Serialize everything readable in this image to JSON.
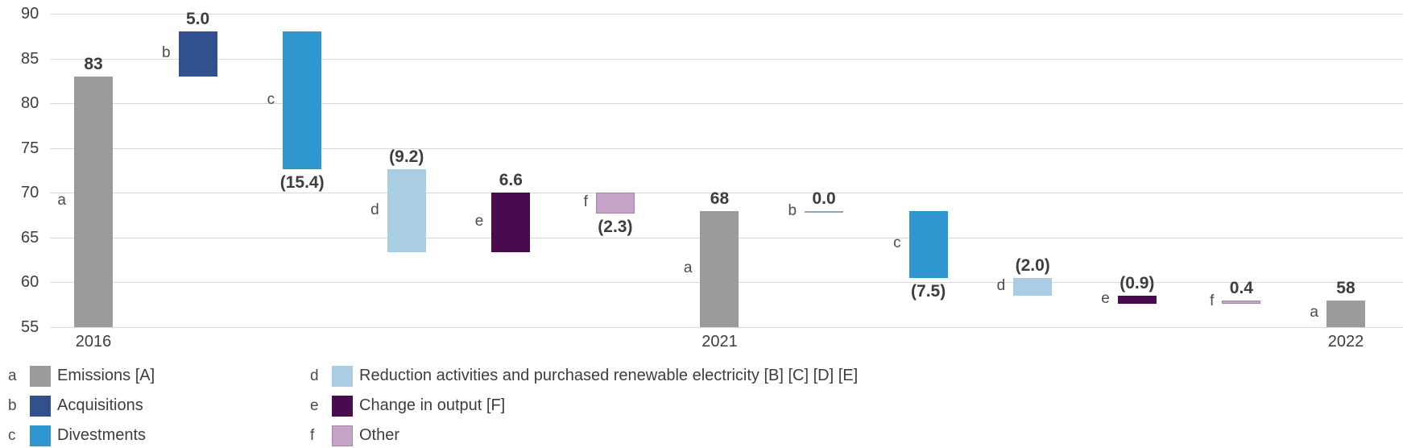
{
  "chart_data": {
    "type": "waterfall",
    "title": "",
    "xlabel": "",
    "ylabel": "",
    "ylim": [
      55,
      90
    ],
    "yticks": [
      90,
      85,
      80,
      75,
      70,
      65,
      60,
      55
    ],
    "grid": "horizontal",
    "legend_position": "bottom",
    "colors": {
      "a": "#9b9b9b",
      "b": "#31508e",
      "c": "#2f96cf",
      "d": "#a9cee4",
      "e": "#4a0a4e",
      "f": "#c6a4ca",
      "f_border": "#a283a8",
      "zero_line": "#8fa6c3",
      "text": "#3d3d3d",
      "gridline": "#d9d9d9"
    },
    "bars": [
      {
        "key": "a",
        "series": "a",
        "value_label": "83",
        "start": 55,
        "end": 83,
        "label_side": "above",
        "axis_label": "2016"
      },
      {
        "key": "b",
        "series": "b",
        "value_label": "5.0",
        "start": 83,
        "end": 88,
        "label_side": "above"
      },
      {
        "key": "c",
        "series": "c",
        "value_label": "(15.4)",
        "start": 88,
        "end": 72.6,
        "label_side": "below"
      },
      {
        "key": "d",
        "series": "d",
        "value_label": "(9.2)",
        "start": 72.6,
        "end": 63.4,
        "label_side": "above"
      },
      {
        "key": "e",
        "series": "e",
        "value_label": "6.6",
        "start": 63.4,
        "end": 70,
        "label_side": "above"
      },
      {
        "key": "f",
        "series": "f",
        "value_label": "(2.3)",
        "start": 70,
        "end": 67.7,
        "label_side": "below"
      },
      {
        "key": "a",
        "series": "a",
        "value_label": "68",
        "start": 55,
        "end": 68,
        "label_side": "above",
        "axis_label": "2021"
      },
      {
        "key": "b",
        "series": "b",
        "value_label": "0.0",
        "start": 68,
        "end": 68,
        "label_side": "above",
        "zero": true
      },
      {
        "key": "c",
        "series": "c",
        "value_label": "(7.5)",
        "start": 68,
        "end": 60.5,
        "label_side": "below"
      },
      {
        "key": "d",
        "series": "d",
        "value_label": "(2.0)",
        "start": 60.5,
        "end": 58.5,
        "label_side": "above"
      },
      {
        "key": "e",
        "series": "e",
        "value_label": "(0.9)",
        "start": 58.5,
        "end": 57.6,
        "label_side": "above"
      },
      {
        "key": "f",
        "series": "f",
        "value_label": "0.4",
        "start": 57.6,
        "end": 58.0,
        "label_side": "above"
      },
      {
        "key": "a",
        "series": "a",
        "value_label": "58",
        "start": 55,
        "end": 58,
        "label_side": "above",
        "axis_label": "2022"
      }
    ],
    "legend": {
      "columns": [
        [
          {
            "key": "a",
            "series": "a",
            "label": "Emissions [A]"
          },
          {
            "key": "b",
            "series": "b",
            "label": "Acquisitions"
          },
          {
            "key": "c",
            "series": "c",
            "label": "Divestments"
          }
        ],
        [
          {
            "key": "d",
            "series": "d",
            "label": "Reduction activities and purchased renewable electricity [B] [C] [D] [E]"
          },
          {
            "key": "e",
            "series": "e",
            "label": "Change in output [F]"
          },
          {
            "key": "f",
            "series": "f",
            "label": "Other"
          }
        ]
      ]
    }
  }
}
